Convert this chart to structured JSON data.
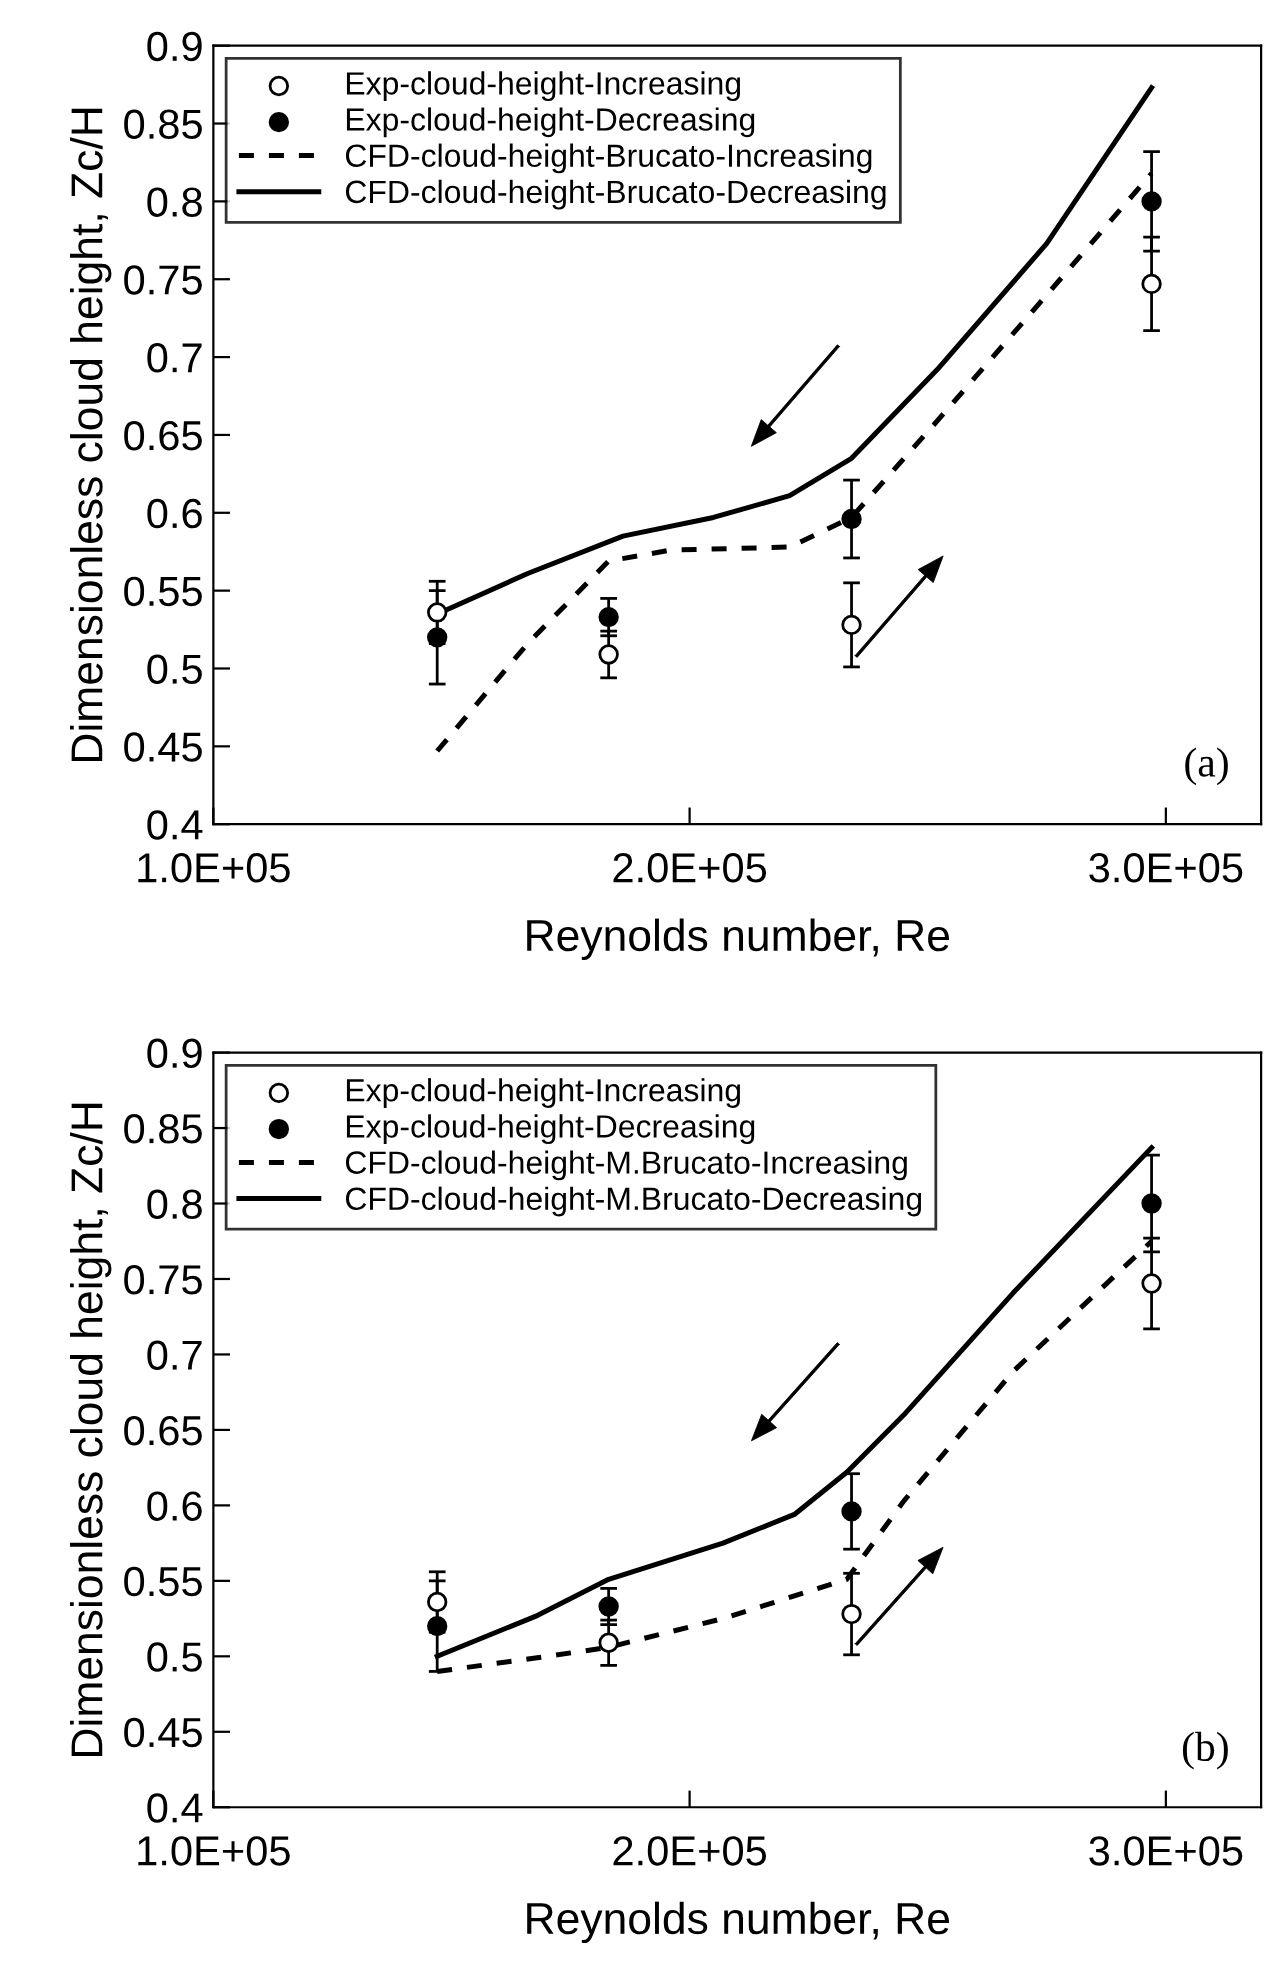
{
  "chart_data": [
    {
      "type": "line",
      "xlabel": "Reynolds number, Re",
      "ylabel": "Dimensionless cloud height, Zc/H",
      "xlim": [
        100000,
        320000
      ],
      "xticks": [
        {
          "value": 100000,
          "label": "1.0E+05"
        },
        {
          "value": 200000,
          "label": "2.0E+05"
        },
        {
          "value": 300000,
          "label": "3.0E+05"
        }
      ],
      "ylim": [
        0.4,
        0.9
      ],
      "yticks": [
        0.4,
        0.45,
        0.5,
        0.55,
        0.6,
        0.65,
        0.7,
        0.75,
        0.8,
        0.85,
        0.9
      ],
      "grid": false,
      "legend": "top left",
      "annotations": [
        "(a)"
      ],
      "series": [
        {
          "name": "Exp-cloud-height-Increasing",
          "type": "scatter",
          "marker": "circle",
          "color": "#ffffff",
          "x": [
            147000,
            183000,
            234000,
            297000
          ],
          "values": [
            0.536,
            0.509,
            0.528,
            0.747
          ],
          "errors": [
            0.02,
            0.015,
            0.027,
            0.03
          ]
        },
        {
          "name": "Exp-cloud-height-Decreasing",
          "type": "scatter",
          "marker": "circle",
          "color": "#000000",
          "x": [
            147000,
            183000,
            234000,
            297000
          ],
          "values": [
            0.52,
            0.533,
            0.596,
            0.8
          ],
          "errors": [
            0.03,
            0.012,
            0.025,
            0.032
          ]
        },
        {
          "name": "CFD-cloud-height-Brucato-Increasing",
          "type": "line",
          "line_style": "dashed",
          "marker": "none",
          "color": "#000000",
          "x": [
            147000,
            166000,
            183000,
            196000,
            221000,
            234000,
            252000,
            275000,
            297000
          ],
          "values": [
            0.447,
            0.516,
            0.569,
            0.576,
            0.578,
            0.597,
            0.659,
            0.74,
            0.818
          ]
        },
        {
          "name": "CFD-cloud-height-Brucato-Decreasing",
          "type": "line",
          "line_style": "solid",
          "marker": "none",
          "color": "#000000",
          "x": [
            147000,
            166000,
            186000,
            205000,
            221000,
            234000,
            252000,
            275000,
            297000
          ],
          "values": [
            0.535,
            0.561,
            0.585,
            0.597,
            0.611,
            0.635,
            0.692,
            0.773,
            0.873
          ]
        }
      ]
    },
    {
      "type": "line",
      "xlabel": "Reynolds number, Re",
      "ylabel": "Dimensionless cloud height, Zc/H",
      "xlim": [
        100000,
        320000
      ],
      "xticks": [
        {
          "value": 100000,
          "label": "1.0E+05"
        },
        {
          "value": 200000,
          "label": "2.0E+05"
        },
        {
          "value": 300000,
          "label": "3.0E+05"
        }
      ],
      "ylim": [
        0.4,
        0.9
      ],
      "yticks": [
        0.4,
        0.45,
        0.5,
        0.55,
        0.6,
        0.65,
        0.7,
        0.75,
        0.8,
        0.85,
        0.9
      ],
      "grid": false,
      "legend": "top left",
      "annotations": [
        "(b)"
      ],
      "series": [
        {
          "name": "Exp-cloud-height-Increasing",
          "type": "scatter",
          "marker": "circle",
          "color": "#ffffff",
          "x": [
            147000,
            183000,
            234000,
            297000
          ],
          "values": [
            0.536,
            0.509,
            0.528,
            0.747
          ],
          "errors": [
            0.02,
            0.015,
            0.027,
            0.03
          ]
        },
        {
          "name": "Exp-cloud-height-Decreasing",
          "type": "scatter",
          "marker": "circle",
          "color": "#000000",
          "x": [
            147000,
            183000,
            234000,
            297000
          ],
          "values": [
            0.52,
            0.533,
            0.596,
            0.8
          ],
          "errors": [
            0.03,
            0.012,
            0.025,
            0.032
          ]
        },
        {
          "name": "CFD-cloud-height-M.Brucato-Increasing",
          "type": "line",
          "line_style": "dashed",
          "marker": "none",
          "color": "#000000",
          "x": [
            147000,
            168000,
            183000,
            207000,
            233000,
            245000,
            268000,
            297000
          ],
          "values": [
            0.49,
            0.499,
            0.506,
            0.525,
            0.551,
            0.603,
            0.689,
            0.775
          ]
        },
        {
          "name": "CFD-cloud-height-M.Brucato-Decreasing",
          "type": "line",
          "line_style": "solid",
          "marker": "none",
          "color": "#000000",
          "x": [
            147000,
            168000,
            183000,
            207000,
            222000,
            233000,
            245000,
            268000,
            297000
          ],
          "values": [
            0.5,
            0.527,
            0.551,
            0.575,
            0.594,
            0.622,
            0.66,
            0.741,
            0.837
          ]
        }
      ]
    }
  ]
}
